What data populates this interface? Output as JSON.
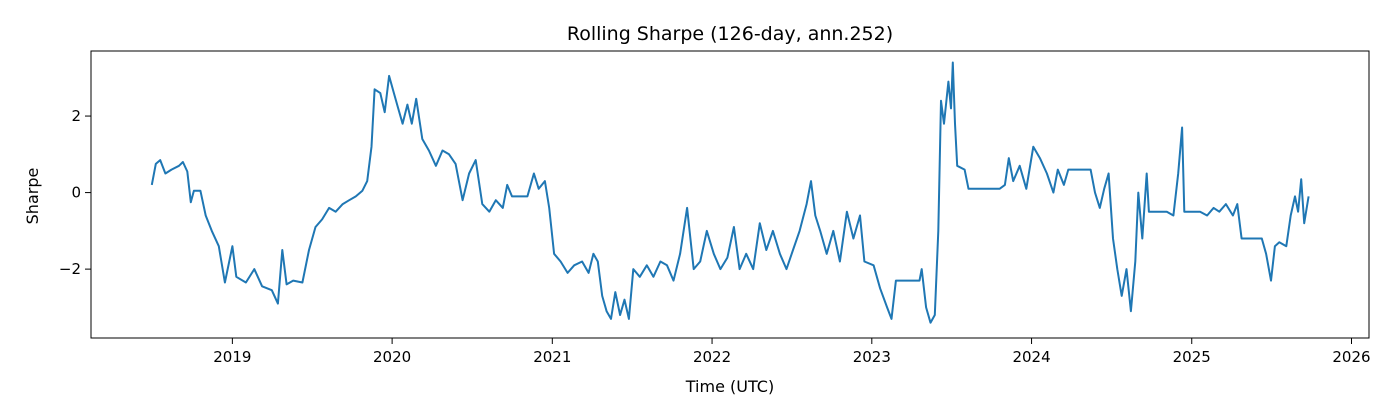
{
  "chart_data": {
    "type": "line",
    "title": "Rolling Sharpe (126-day, ann.252)",
    "xlabel": "Time (UTC)",
    "ylabel": "Sharpe",
    "xlim": [
      "2018-02-12",
      "2026-02-10"
    ],
    "ylim": [
      -3.8,
      3.7
    ],
    "x_ticks": [
      "2019",
      "2020",
      "2021",
      "2022",
      "2023",
      "2024",
      "2025",
      "2026"
    ],
    "y_ticks": [
      -2,
      0,
      2
    ],
    "grid": false,
    "line_color": "#1f77b4",
    "series": [
      {
        "points": [
          [
            "2018-07-01",
            0.2
          ],
          [
            "2018-07-10",
            0.75
          ],
          [
            "2018-07-20",
            0.85
          ],
          [
            "2018-08-01",
            0.5
          ],
          [
            "2018-08-15",
            0.6
          ],
          [
            "2018-09-01",
            0.7
          ],
          [
            "2018-09-10",
            0.8
          ],
          [
            "2018-09-20",
            0.55
          ],
          [
            "2018-09-28",
            -0.25
          ],
          [
            "2018-10-05",
            0.05
          ],
          [
            "2018-10-20",
            0.05
          ],
          [
            "2018-11-01",
            -0.6
          ],
          [
            "2018-11-15",
            -1.0
          ],
          [
            "2018-12-01",
            -1.4
          ],
          [
            "2018-12-15",
            -2.35
          ],
          [
            "2019-01-01",
            -1.4
          ],
          [
            "2019-01-10",
            -2.2
          ],
          [
            "2019-02-01",
            -2.35
          ],
          [
            "2019-02-20",
            -2.0
          ],
          [
            "2019-03-10",
            -2.45
          ],
          [
            "2019-04-01",
            -2.55
          ],
          [
            "2019-04-15",
            -2.9
          ],
          [
            "2019-04-25",
            -1.5
          ],
          [
            "2019-05-05",
            -2.4
          ],
          [
            "2019-05-20",
            -2.3
          ],
          [
            "2019-06-10",
            -2.35
          ],
          [
            "2019-06-25",
            -1.5
          ],
          [
            "2019-07-10",
            -0.9
          ],
          [
            "2019-07-25",
            -0.7
          ],
          [
            "2019-08-10",
            -0.4
          ],
          [
            "2019-08-25",
            -0.5
          ],
          [
            "2019-09-10",
            -0.3
          ],
          [
            "2019-09-25",
            -0.2
          ],
          [
            "2019-10-10",
            -0.1
          ],
          [
            "2019-10-25",
            0.05
          ],
          [
            "2019-11-05",
            0.3
          ],
          [
            "2019-11-15",
            1.2
          ],
          [
            "2019-11-22",
            2.7
          ],
          [
            "2019-12-05",
            2.6
          ],
          [
            "2019-12-15",
            2.1
          ],
          [
            "2019-12-25",
            3.05
          ],
          [
            "2020-01-05",
            2.6
          ],
          [
            "2020-01-15",
            2.2
          ],
          [
            "2020-01-25",
            1.8
          ],
          [
            "2020-02-05",
            2.3
          ],
          [
            "2020-02-15",
            1.8
          ],
          [
            "2020-02-25",
            2.45
          ],
          [
            "2020-03-10",
            1.4
          ],
          [
            "2020-03-25",
            1.1
          ],
          [
            "2020-04-10",
            0.7
          ],
          [
            "2020-04-25",
            1.1
          ],
          [
            "2020-05-10",
            1.0
          ],
          [
            "2020-05-25",
            0.75
          ],
          [
            "2020-06-10",
            -0.2
          ],
          [
            "2020-06-25",
            0.5
          ],
          [
            "2020-07-10",
            0.85
          ],
          [
            "2020-07-25",
            -0.3
          ],
          [
            "2020-08-10",
            -0.5
          ],
          [
            "2020-08-25",
            -0.2
          ],
          [
            "2020-09-10",
            -0.4
          ],
          [
            "2020-09-20",
            0.2
          ],
          [
            "2020-10-01",
            -0.1
          ],
          [
            "2020-10-20",
            -0.1
          ],
          [
            "2020-11-05",
            -0.1
          ],
          [
            "2020-11-20",
            0.5
          ],
          [
            "2020-12-01",
            0.1
          ],
          [
            "2020-12-15",
            0.3
          ],
          [
            "2020-12-25",
            -0.4
          ],
          [
            "2021-01-05",
            -1.6
          ],
          [
            "2021-01-20",
            -1.8
          ],
          [
            "2021-02-05",
            -2.1
          ],
          [
            "2021-02-20",
            -1.9
          ],
          [
            "2021-03-10",
            -1.8
          ],
          [
            "2021-03-25",
            -2.1
          ],
          [
            "2021-04-05",
            -1.6
          ],
          [
            "2021-04-15",
            -1.8
          ],
          [
            "2021-04-25",
            -2.7
          ],
          [
            "2021-05-05",
            -3.1
          ],
          [
            "2021-05-15",
            -3.3
          ],
          [
            "2021-05-25",
            -2.6
          ],
          [
            "2021-06-05",
            -3.2
          ],
          [
            "2021-06-15",
            -2.8
          ],
          [
            "2021-06-25",
            -3.3
          ],
          [
            "2021-07-05",
            -2.0
          ],
          [
            "2021-07-20",
            -2.2
          ],
          [
            "2021-08-05",
            -1.9
          ],
          [
            "2021-08-20",
            -2.2
          ],
          [
            "2021-09-05",
            -1.8
          ],
          [
            "2021-09-20",
            -1.9
          ],
          [
            "2021-10-05",
            -2.3
          ],
          [
            "2021-10-20",
            -1.6
          ],
          [
            "2021-11-05",
            -0.4
          ],
          [
            "2021-11-20",
            -2.0
          ],
          [
            "2021-12-05",
            -1.8
          ],
          [
            "2021-12-20",
            -1.0
          ],
          [
            "2022-01-05",
            -1.6
          ],
          [
            "2022-01-20",
            -2.0
          ],
          [
            "2022-02-05",
            -1.7
          ],
          [
            "2022-02-20",
            -0.9
          ],
          [
            "2022-03-05",
            -2.0
          ],
          [
            "2022-03-20",
            -1.6
          ],
          [
            "2022-04-05",
            -2.0
          ],
          [
            "2022-04-20",
            -0.8
          ],
          [
            "2022-05-05",
            -1.5
          ],
          [
            "2022-05-20",
            -1.0
          ],
          [
            "2022-06-05",
            -1.6
          ],
          [
            "2022-06-20",
            -2.0
          ],
          [
            "2022-07-05",
            -1.5
          ],
          [
            "2022-07-20",
            -1.0
          ],
          [
            "2022-08-05",
            -0.3
          ],
          [
            "2022-08-15",
            0.3
          ],
          [
            "2022-08-25",
            -0.6
          ],
          [
            "2022-09-05",
            -1.0
          ],
          [
            "2022-09-20",
            -1.6
          ],
          [
            "2022-10-05",
            -1.0
          ],
          [
            "2022-10-20",
            -1.8
          ],
          [
            "2022-11-05",
            -0.5
          ],
          [
            "2022-11-20",
            -1.2
          ],
          [
            "2022-12-05",
            -0.6
          ],
          [
            "2022-12-15",
            -1.8
          ],
          [
            "2023-01-05",
            -1.9
          ],
          [
            "2023-01-20",
            -2.5
          ],
          [
            "2023-02-05",
            -3.0
          ],
          [
            "2023-02-15",
            -3.3
          ],
          [
            "2023-02-25",
            -2.3
          ],
          [
            "2023-04-20",
            -2.3
          ],
          [
            "2023-04-25",
            -2.0
          ],
          [
            "2023-05-05",
            -3.0
          ],
          [
            "2023-05-15",
            -3.4
          ],
          [
            "2023-05-25",
            -3.2
          ],
          [
            "2023-06-02",
            -1.0
          ],
          [
            "2023-06-08",
            2.4
          ],
          [
            "2023-06-15",
            1.8
          ],
          [
            "2023-06-25",
            2.9
          ],
          [
            "2023-07-01",
            2.2
          ],
          [
            "2023-07-05",
            3.4
          ],
          [
            "2023-07-10",
            1.8
          ],
          [
            "2023-07-15",
            0.7
          ],
          [
            "2023-08-01",
            0.6
          ],
          [
            "2023-08-10",
            0.1
          ],
          [
            "2023-10-20",
            0.1
          ],
          [
            "2023-11-01",
            0.2
          ],
          [
            "2023-11-10",
            0.9
          ],
          [
            "2023-11-20",
            0.3
          ],
          [
            "2023-12-05",
            0.7
          ],
          [
            "2023-12-20",
            0.1
          ],
          [
            "2024-01-05",
            1.2
          ],
          [
            "2024-01-20",
            0.9
          ],
          [
            "2024-02-05",
            0.5
          ],
          [
            "2024-02-20",
            0.0
          ],
          [
            "2024-03-01",
            0.6
          ],
          [
            "2024-03-15",
            0.2
          ],
          [
            "2024-03-25",
            0.6
          ],
          [
            "2024-05-15",
            0.6
          ],
          [
            "2024-05-25",
            0.0
          ],
          [
            "2024-06-05",
            -0.4
          ],
          [
            "2024-06-15",
            0.1
          ],
          [
            "2024-06-25",
            0.5
          ],
          [
            "2024-07-05",
            -1.2
          ],
          [
            "2024-07-15",
            -2.0
          ],
          [
            "2024-07-25",
            -2.7
          ],
          [
            "2024-08-05",
            -2.0
          ],
          [
            "2024-08-15",
            -3.1
          ],
          [
            "2024-08-25",
            -1.8
          ],
          [
            "2024-09-01",
            0.0
          ],
          [
            "2024-09-10",
            -1.2
          ],
          [
            "2024-09-20",
            0.5
          ],
          [
            "2024-09-25",
            -0.5
          ],
          [
            "2024-11-05",
            -0.5
          ],
          [
            "2024-11-20",
            -0.6
          ],
          [
            "2024-12-01",
            0.5
          ],
          [
            "2024-12-10",
            1.7
          ],
          [
            "2024-12-15",
            -0.5
          ],
          [
            "2025-01-20",
            -0.5
          ],
          [
            "2025-02-05",
            -0.6
          ],
          [
            "2025-02-20",
            -0.4
          ],
          [
            "2025-03-05",
            -0.5
          ],
          [
            "2025-03-20",
            -0.3
          ],
          [
            "2025-04-05",
            -0.6
          ],
          [
            "2025-04-15",
            -0.3
          ],
          [
            "2025-04-25",
            -1.2
          ],
          [
            "2025-06-10",
            -1.2
          ],
          [
            "2025-06-20",
            -1.6
          ],
          [
            "2025-07-01",
            -2.3
          ],
          [
            "2025-07-10",
            -1.4
          ],
          [
            "2025-07-20",
            -1.3
          ],
          [
            "2025-08-05",
            -1.4
          ],
          [
            "2025-08-15",
            -0.6
          ],
          [
            "2025-08-25",
            -0.1
          ],
          [
            "2025-09-01",
            -0.5
          ],
          [
            "2025-09-08",
            0.35
          ],
          [
            "2025-09-15",
            -0.8
          ],
          [
            "2025-09-25",
            -0.1
          ]
        ]
      }
    ]
  }
}
